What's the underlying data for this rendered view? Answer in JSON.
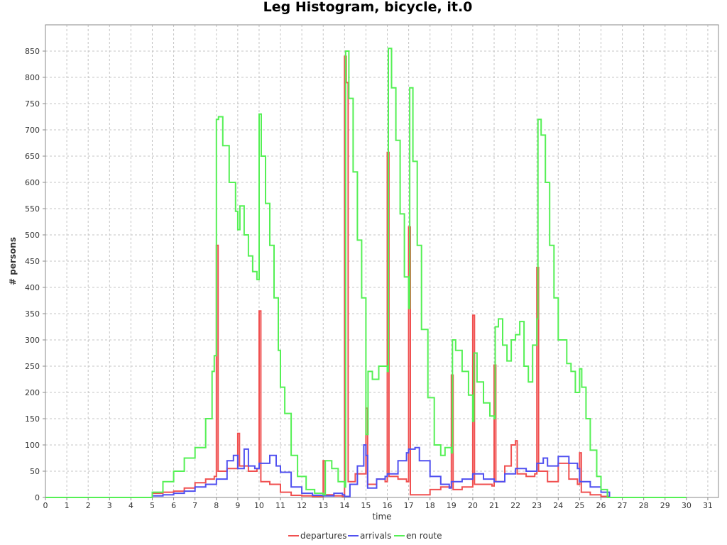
{
  "chart_data": {
    "type": "line",
    "title": "Leg Histogram, bicycle, it.0",
    "xlabel": "time",
    "ylabel": "# persons",
    "xlim": [
      0,
      31.5
    ],
    "ylim": [
      0,
      900
    ],
    "x_ticks": [
      0,
      1,
      2,
      3,
      4,
      5,
      6,
      7,
      8,
      9,
      10,
      11,
      12,
      13,
      14,
      15,
      16,
      17,
      18,
      19,
      20,
      21,
      22,
      23,
      24,
      25,
      26,
      27,
      28,
      29,
      30,
      31
    ],
    "y_ticks": [
      0,
      50,
      100,
      150,
      200,
      250,
      300,
      350,
      400,
      450,
      500,
      550,
      600,
      650,
      700,
      750,
      800,
      850
    ],
    "grid": true,
    "legend_position": "bottom",
    "bin_width": 0.0833,
    "series": [
      {
        "name": "departures",
        "color": "#f05050",
        "points": [
          [
            0,
            0
          ],
          [
            5,
            0
          ],
          [
            5,
            8
          ],
          [
            5.5,
            10
          ],
          [
            6,
            12
          ],
          [
            6.5,
            18
          ],
          [
            7,
            28
          ],
          [
            7.5,
            35
          ],
          [
            7.9,
            40
          ],
          [
            8,
            480
          ],
          [
            8.08,
            50
          ],
          [
            8.5,
            55
          ],
          [
            9,
            122
          ],
          [
            9.08,
            60
          ],
          [
            9.5,
            50
          ],
          [
            9.9,
            55
          ],
          [
            10,
            355
          ],
          [
            10.08,
            30
          ],
          [
            10.5,
            25
          ],
          [
            11,
            10
          ],
          [
            11.5,
            4
          ],
          [
            12,
            3
          ],
          [
            12.5,
            2
          ],
          [
            13,
            70
          ],
          [
            13.08,
            5
          ],
          [
            13.5,
            3
          ],
          [
            13.9,
            2
          ],
          [
            14,
            840
          ],
          [
            14.08,
            790
          ],
          [
            14.17,
            30
          ],
          [
            14.5,
            45
          ],
          [
            15,
            170
          ],
          [
            15.08,
            25
          ],
          [
            15.5,
            35
          ],
          [
            15.9,
            30
          ],
          [
            16,
            657
          ],
          [
            16.08,
            40
          ],
          [
            16.5,
            35
          ],
          [
            16.9,
            30
          ],
          [
            17,
            515
          ],
          [
            17.08,
            5
          ],
          [
            17.5,
            5
          ],
          [
            18,
            15
          ],
          [
            18.5,
            20
          ],
          [
            19,
            233
          ],
          [
            19.08,
            15
          ],
          [
            19.5,
            20
          ],
          [
            19.9,
            20
          ],
          [
            20,
            347
          ],
          [
            20.08,
            25
          ],
          [
            20.5,
            25
          ],
          [
            20.9,
            22
          ],
          [
            21,
            252
          ],
          [
            21.08,
            30
          ],
          [
            21.5,
            60
          ],
          [
            21.8,
            100
          ],
          [
            22,
            108
          ],
          [
            22.08,
            45
          ],
          [
            22.5,
            40
          ],
          [
            22.9,
            45
          ],
          [
            23,
            438
          ],
          [
            23.08,
            50
          ],
          [
            23.5,
            30
          ],
          [
            24,
            65
          ],
          [
            24.5,
            35
          ],
          [
            24.9,
            25
          ],
          [
            25,
            85
          ],
          [
            25.08,
            10
          ],
          [
            25.5,
            5
          ],
          [
            26,
            2
          ],
          [
            26.4,
            0
          ],
          [
            30,
            0
          ]
        ]
      },
      {
        "name": "arrivals",
        "color": "#5050f0",
        "points": [
          [
            0,
            0
          ],
          [
            5,
            0
          ],
          [
            5,
            3
          ],
          [
            5.5,
            5
          ],
          [
            6,
            8
          ],
          [
            6.5,
            12
          ],
          [
            7,
            20
          ],
          [
            7.5,
            25
          ],
          [
            8,
            35
          ],
          [
            8.5,
            70
          ],
          [
            8.8,
            80
          ],
          [
            9,
            55
          ],
          [
            9.3,
            92
          ],
          [
            9.5,
            60
          ],
          [
            9.8,
            55
          ],
          [
            10,
            65
          ],
          [
            10.5,
            80
          ],
          [
            10.8,
            60
          ],
          [
            11,
            48
          ],
          [
            11.5,
            20
          ],
          [
            12,
            8
          ],
          [
            12.5,
            4
          ],
          [
            13,
            3
          ],
          [
            13.5,
            8
          ],
          [
            13.9,
            5
          ],
          [
            14,
            2
          ],
          [
            14.25,
            25
          ],
          [
            14.6,
            60
          ],
          [
            14.9,
            100
          ],
          [
            15,
            80
          ],
          [
            15.08,
            18
          ],
          [
            15.5,
            35
          ],
          [
            15.9,
            40
          ],
          [
            16,
            45
          ],
          [
            16.5,
            70
          ],
          [
            16.9,
            85
          ],
          [
            17,
            92
          ],
          [
            17.3,
            95
          ],
          [
            17.5,
            70
          ],
          [
            18,
            40
          ],
          [
            18.5,
            25
          ],
          [
            18.9,
            18
          ],
          [
            19,
            30
          ],
          [
            19.5,
            35
          ],
          [
            20,
            45
          ],
          [
            20.5,
            35
          ],
          [
            21,
            30
          ],
          [
            21.5,
            45
          ],
          [
            22,
            55
          ],
          [
            22.5,
            50
          ],
          [
            23,
            65
          ],
          [
            23.3,
            75
          ],
          [
            23.5,
            60
          ],
          [
            24,
            78
          ],
          [
            24.5,
            65
          ],
          [
            24.9,
            55
          ],
          [
            25,
            30
          ],
          [
            25.5,
            20
          ],
          [
            26,
            10
          ],
          [
            26.4,
            0
          ],
          [
            30,
            0
          ]
        ]
      },
      {
        "name": "en route",
        "color": "#55f055",
        "points": [
          [
            0,
            0
          ],
          [
            5,
            0
          ],
          [
            5,
            10
          ],
          [
            5.5,
            30
          ],
          [
            6,
            50
          ],
          [
            6.5,
            75
          ],
          [
            7,
            95
          ],
          [
            7.5,
            150
          ],
          [
            7.8,
            240
          ],
          [
            7.9,
            270
          ],
          [
            8,
            720
          ],
          [
            8.1,
            725
          ],
          [
            8.3,
            670
          ],
          [
            8.6,
            600
          ],
          [
            8.9,
            545
          ],
          [
            9.0,
            510
          ],
          [
            9.1,
            555
          ],
          [
            9.3,
            500
          ],
          [
            9.5,
            460
          ],
          [
            9.7,
            430
          ],
          [
            9.9,
            415
          ],
          [
            10,
            730
          ],
          [
            10.1,
            650
          ],
          [
            10.3,
            560
          ],
          [
            10.5,
            480
          ],
          [
            10.7,
            380
          ],
          [
            10.9,
            280
          ],
          [
            11,
            210
          ],
          [
            11.2,
            160
          ],
          [
            11.5,
            80
          ],
          [
            11.8,
            40
          ],
          [
            12.2,
            15
          ],
          [
            12.6,
            8
          ],
          [
            13,
            5
          ],
          [
            13.1,
            70
          ],
          [
            13.4,
            55
          ],
          [
            13.7,
            30
          ],
          [
            14,
            20
          ],
          [
            14.05,
            850
          ],
          [
            14.2,
            760
          ],
          [
            14.4,
            620
          ],
          [
            14.6,
            490
          ],
          [
            14.8,
            380
          ],
          [
            15,
            120
          ],
          [
            15.1,
            240
          ],
          [
            15.3,
            225
          ],
          [
            15.6,
            250
          ],
          [
            16,
            240
          ],
          [
            16.05,
            855
          ],
          [
            16.2,
            780
          ],
          [
            16.4,
            680
          ],
          [
            16.6,
            540
          ],
          [
            16.8,
            420
          ],
          [
            17,
            360
          ],
          [
            17.05,
            780
          ],
          [
            17.2,
            640
          ],
          [
            17.4,
            480
          ],
          [
            17.6,
            320
          ],
          [
            17.9,
            190
          ],
          [
            18.2,
            100
          ],
          [
            18.5,
            80
          ],
          [
            18.7,
            95
          ],
          [
            19,
            85
          ],
          [
            19.05,
            300
          ],
          [
            19.2,
            280
          ],
          [
            19.5,
            240
          ],
          [
            19.8,
            195
          ],
          [
            20,
            145
          ],
          [
            20.05,
            275
          ],
          [
            20.2,
            220
          ],
          [
            20.5,
            180
          ],
          [
            20.8,
            155
          ],
          [
            21,
            150
          ],
          [
            21.05,
            325
          ],
          [
            21.2,
            340
          ],
          [
            21.4,
            290
          ],
          [
            21.6,
            260
          ],
          [
            21.8,
            300
          ],
          [
            22,
            310
          ],
          [
            22.2,
            335
          ],
          [
            22.4,
            250
          ],
          [
            22.6,
            220
          ],
          [
            22.8,
            290
          ],
          [
            23,
            340
          ],
          [
            23.05,
            720
          ],
          [
            23.2,
            690
          ],
          [
            23.4,
            600
          ],
          [
            23.6,
            480
          ],
          [
            23.8,
            380
          ],
          [
            24,
            300
          ],
          [
            24.2,
            300
          ],
          [
            24.4,
            255
          ],
          [
            24.6,
            240
          ],
          [
            24.8,
            200
          ],
          [
            25,
            245
          ],
          [
            25.1,
            210
          ],
          [
            25.3,
            150
          ],
          [
            25.5,
            90
          ],
          [
            25.8,
            40
          ],
          [
            26,
            15
          ],
          [
            26.3,
            0
          ],
          [
            30,
            0
          ]
        ]
      }
    ]
  }
}
